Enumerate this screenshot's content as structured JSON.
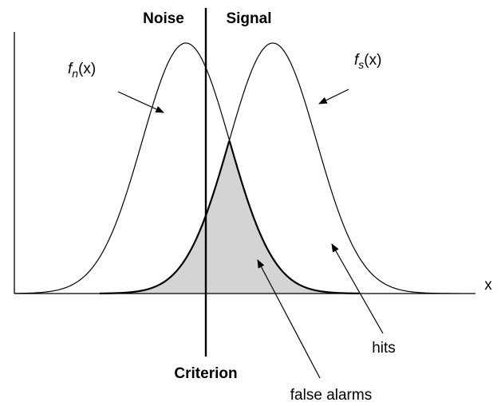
{
  "labels": {
    "noise": "Noise",
    "signal": "Signal",
    "criterion": "Criterion",
    "x_axis": "x",
    "hits": "hits",
    "false_alarms": "false alarms"
  },
  "noise_density": {
    "f": "f",
    "sub": "n",
    "arg": "(x)"
  },
  "signal_density": {
    "f": "f",
    "sub": "s",
    "arg": "(x)"
  }
}
